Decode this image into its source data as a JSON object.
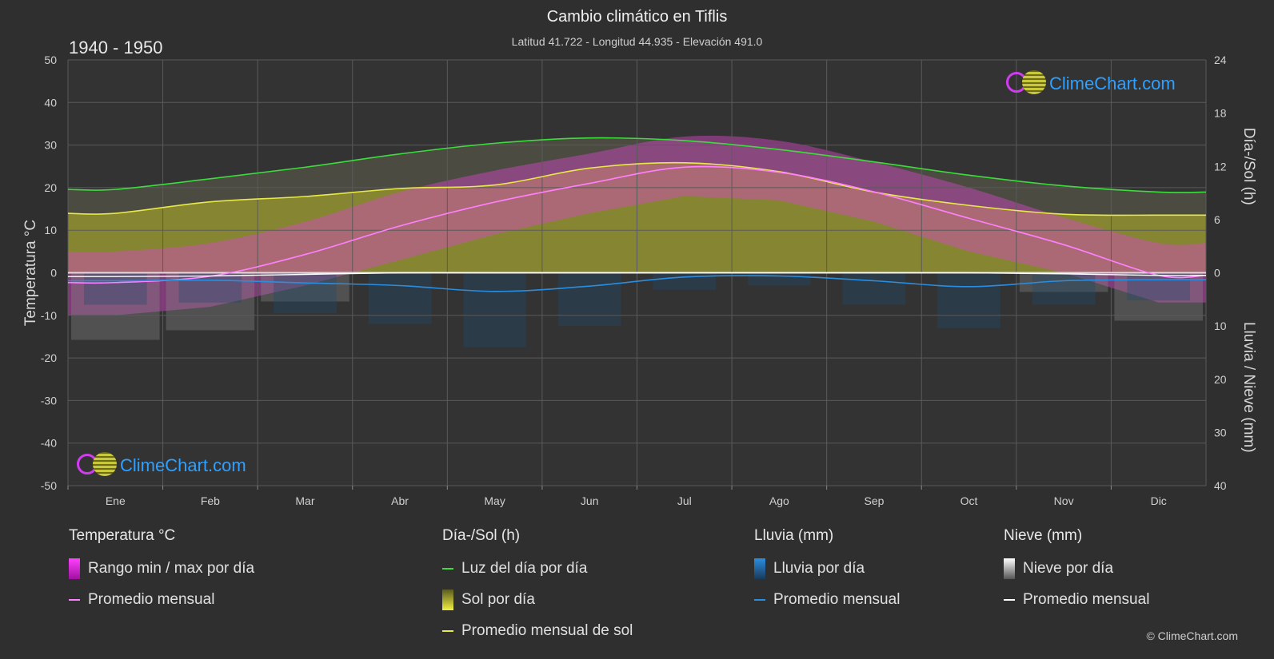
{
  "header": {
    "title": "Cambio climático en Tiflis",
    "subtitle": "Latitud 41.722 - Longitud 44.935 - Elevación 491.0",
    "period": "1940 - 1950"
  },
  "brand": {
    "logo_text": "ClimeChart.com",
    "copyright": "© ClimeChart.com"
  },
  "colors": {
    "background": "#2f2f2f",
    "daylight": "#3ddc3d",
    "sunshine_avg": "#e8e84a",
    "sunshine_fill": "#9a9a2e",
    "temp_range": "#e020e0",
    "temp_avg": "#ff80ff",
    "rain": "#2a8ee0",
    "snow": "#ffffff",
    "grid": "#5a5a5a"
  },
  "chart_data": {
    "type": "line",
    "categories": [
      "Ene",
      "Feb",
      "Mar",
      "Abr",
      "May",
      "Jun",
      "Jul",
      "Ago",
      "Sep",
      "Oct",
      "Nov",
      "Dic"
    ],
    "left_axis": {
      "label": "Temperatura °C",
      "range": [
        -50,
        50
      ],
      "ticks": [
        "50",
        "40",
        "30",
        "20",
        "10",
        "0",
        "-10",
        "-20",
        "-30",
        "-40",
        "-50"
      ]
    },
    "right_axis_top": {
      "label": "Día-/Sol (h)",
      "range": [
        0,
        24
      ],
      "ticks": [
        "24",
        "18",
        "12",
        "6",
        "0"
      ]
    },
    "right_axis_bottom": {
      "label": "Lluvia / Nieve (mm)",
      "range": [
        0,
        40
      ],
      "ticks": [
        "10",
        "20",
        "30",
        "40"
      ]
    },
    "grid": true,
    "series": [
      {
        "name": "Luz del día por día",
        "axis": "hours",
        "values": [
          9.4,
          10.6,
          11.9,
          13.4,
          14.6,
          15.2,
          14.9,
          13.9,
          12.5,
          11.0,
          9.8,
          9.1
        ]
      },
      {
        "name": "Promedio mensual de sol",
        "axis": "hours",
        "values": [
          6.7,
          8.0,
          8.6,
          9.5,
          9.9,
          11.8,
          12.4,
          11.4,
          9.1,
          7.6,
          6.6,
          6.5
        ]
      },
      {
        "name": "Promedio mensual",
        "kind": "temperature",
        "axis": "temperature",
        "values": [
          -2.3,
          -0.8,
          4.3,
          11.0,
          16.6,
          21.0,
          24.8,
          23.6,
          19.0,
          12.8,
          6.6,
          -0.6
        ]
      },
      {
        "name": "Promedio mensual",
        "kind": "rain",
        "axis": "precip",
        "values": [
          1.5,
          1.4,
          1.9,
          2.4,
          3.5,
          2.5,
          0.8,
          0.6,
          1.5,
          2.6,
          1.5,
          1.3
        ]
      },
      {
        "name": "Promedio mensual",
        "kind": "snow",
        "axis": "precip",
        "values": [
          0.7,
          0.6,
          0.3,
          0.0,
          0.0,
          0.0,
          0.0,
          0.0,
          0.0,
          0.0,
          0.2,
          0.5
        ]
      }
    ],
    "temp_range_min": [
      -10,
      -8,
      -3,
      3,
      9,
      14,
      18,
      17,
      12,
      5,
      0,
      -7
    ],
    "temp_range_max": [
      5,
      7,
      12,
      19,
      24,
      28,
      32,
      31,
      26,
      20,
      13,
      7
    ]
  },
  "legend": {
    "temperature": {
      "title": "Temperatura °C",
      "items": [
        "Rango min / max por día",
        "Promedio mensual"
      ]
    },
    "sun": {
      "title": "Día-/Sol (h)",
      "items": [
        "Luz del día por día",
        "Sol por día",
        "Promedio mensual de sol"
      ]
    },
    "rain": {
      "title": "Lluvia (mm)",
      "items": [
        "Lluvia por día",
        "Promedio mensual"
      ]
    },
    "snow": {
      "title": "Nieve (mm)",
      "items": [
        "Nieve por día",
        "Promedio mensual"
      ]
    }
  }
}
